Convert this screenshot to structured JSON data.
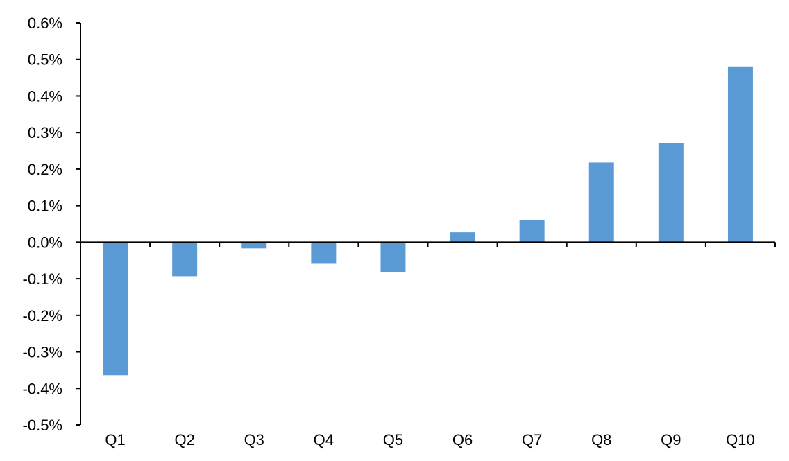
{
  "chart_data": {
    "type": "bar",
    "title": "",
    "xlabel": "",
    "ylabel": "",
    "categories": [
      "Q1",
      "Q2",
      "Q3",
      "Q4",
      "Q5",
      "Q6",
      "Q7",
      "Q8",
      "Q9",
      "Q10"
    ],
    "values": [
      -0.364,
      -0.093,
      -0.017,
      -0.059,
      -0.081,
      0.027,
      0.061,
      0.218,
      0.271,
      0.481
    ],
    "value_unit": "%",
    "ylim": [
      -0.5,
      0.6
    ],
    "yticks": [
      0.6,
      0.5,
      0.4,
      0.3,
      0.2,
      0.1,
      0.0,
      -0.1,
      -0.2,
      -0.3,
      -0.4,
      -0.5
    ],
    "ytick_labels": [
      "0.6%",
      "0.5%",
      "0.4%",
      "0.3%",
      "0.2%",
      "0.1%",
      "0.0%",
      "-0.1%",
      "-0.2%",
      "-0.3%",
      "-0.4%",
      "-0.5%"
    ],
    "grid": false,
    "legend": "none",
    "bar_color": "#5B9BD5"
  }
}
